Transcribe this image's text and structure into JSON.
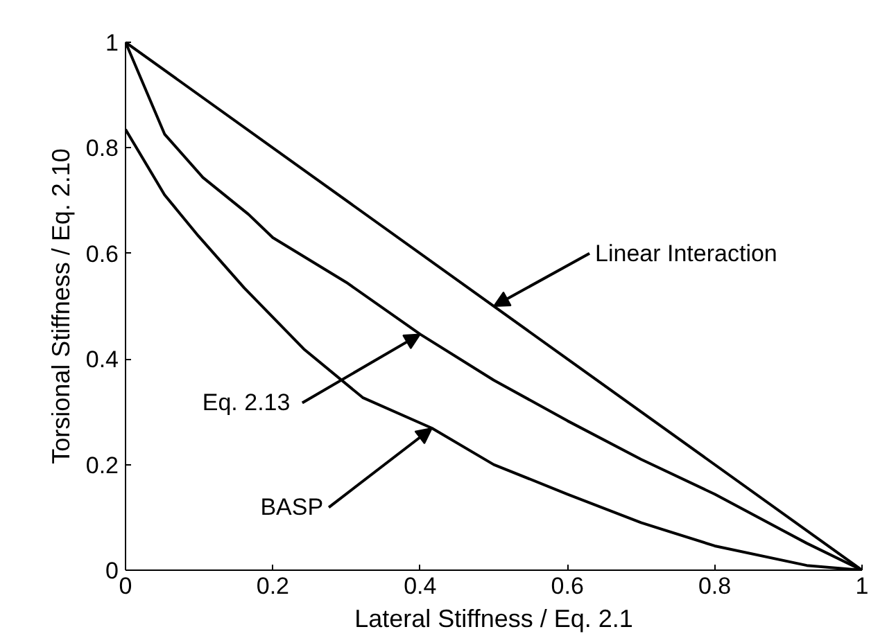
{
  "chart_data": {
    "type": "line",
    "xlabel": "Lateral Stiffness / Eq. 2.1",
    "ylabel": "Torsional Stiffness / Eq. 2.10",
    "xlim": [
      0,
      1
    ],
    "ylim": [
      0,
      1
    ],
    "xticks": [
      0,
      0.2,
      0.4,
      0.6,
      0.8,
      1
    ],
    "yticks": [
      0,
      0.2,
      0.4,
      0.6,
      0.8,
      1
    ],
    "grid": false,
    "marker": "none",
    "line_style": "solid",
    "series": [
      {
        "color": "#000000",
        "x": [
          0,
          1
        ],
        "values": [
          1,
          0
        ]
      },
      {
        "color": "#000000",
        "x": [
          0,
          0.053,
          0.105,
          0.167,
          0.2,
          0.3,
          0.4,
          0.5,
          0.6,
          0.7,
          0.8,
          0.925,
          1
        ],
        "values": [
          1,
          0.826,
          0.744,
          0.674,
          0.63,
          0.545,
          0.447,
          0.36,
          0.283,
          0.21,
          0.144,
          0.051,
          0
        ]
      },
      {
        "color": "#000000",
        "x": [
          0,
          0.053,
          0.099,
          0.161,
          0.242,
          0.322,
          0.416,
          0.5,
          0.6,
          0.7,
          0.8,
          0.925,
          1
        ],
        "values": [
          0.835,
          0.711,
          0.633,
          0.535,
          0.419,
          0.327,
          0.269,
          0.2,
          0.144,
          0.09,
          0.046,
          0.009,
          0
        ]
      }
    ],
    "annotations": [
      {
        "text": "Linear Interaction",
        "x": 0.5,
        "y": 0.5
      },
      {
        "text": "Eq.  2.13",
        "x": 0.4,
        "y": 0.447
      },
      {
        "text": "BASP",
        "x": 0.416,
        "y": 0.269
      }
    ]
  }
}
